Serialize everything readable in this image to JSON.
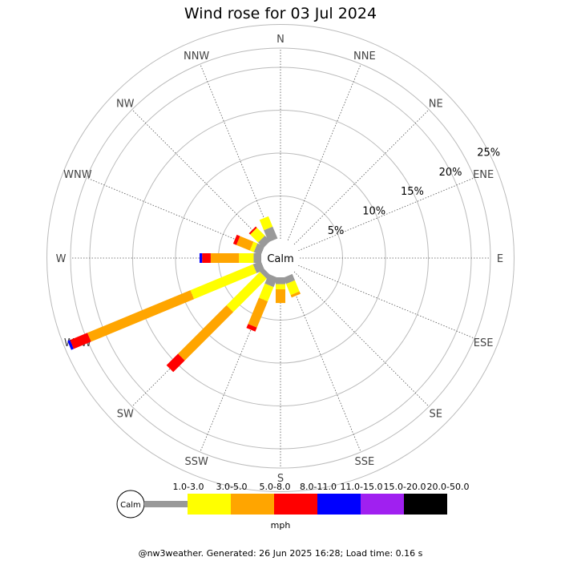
{
  "title": "Wind rose for 03 Jul 2024",
  "center_label": "Calm",
  "footer": "@nw3weather. Generated: 26 Jun 2025 16:28; Load time: 0.16 s",
  "legend": {
    "calm_label": "Calm",
    "unit": "mph",
    "bins": [
      {
        "label": "1.0-3.0",
        "color": "#999999"
      },
      {
        "label": "3.0-5.0",
        "color": "#ffff00"
      },
      {
        "label": "5.0-8.0",
        "color": "#ffa500"
      },
      {
        "label": "8.0-11.0",
        "color": "#ff0000"
      },
      {
        "label": "11.0-15.0",
        "color": "#0000ff"
      },
      {
        "label": "15.0-20.0",
        "color": "#a020f0"
      },
      {
        "label": "20.0-50.0",
        "color": "#000000"
      }
    ]
  },
  "chart_data": {
    "type": "wind-rose",
    "title": "Wind rose for 03 Jul 2024",
    "unit": "mph",
    "radial_ticks": [
      {
        "value": 5,
        "label": "5%"
      },
      {
        "value": 10,
        "label": "10%"
      },
      {
        "value": 15,
        "label": "15%"
      },
      {
        "value": 20,
        "label": "20%"
      },
      {
        "value": 25,
        "label": "25%"
      }
    ],
    "directions": [
      "N",
      "NNE",
      "NE",
      "ENE",
      "E",
      "ESE",
      "SE",
      "SSE",
      "S",
      "SSW",
      "SW",
      "WSW",
      "W",
      "WNW",
      "NW",
      "NNW"
    ],
    "speed_bins": [
      "1.0-3.0",
      "3.0-5.0",
      "5.0-8.0",
      "8.0-11.0",
      "11.0-15.0",
      "15.0-20.0",
      "20.0-50.0"
    ],
    "colors": [
      "#999999",
      "#ffff00",
      "#ffa500",
      "#ff0000",
      "#0000ff",
      "#a020f0",
      "#000000"
    ],
    "values": {
      "N": [
        0,
        0,
        0,
        0,
        0,
        0,
        0
      ],
      "NNE": [
        0,
        0,
        0,
        0,
        0,
        0,
        0
      ],
      "NE": [
        0,
        0,
        0,
        0,
        0,
        0,
        0
      ],
      "ENE": [
        0,
        0,
        0,
        0,
        0,
        0,
        0
      ],
      "E": [
        0,
        0,
        0,
        0,
        0,
        0,
        0
      ],
      "ESE": [
        0,
        0,
        0,
        0,
        0,
        0,
        0
      ],
      "SE": [
        0,
        0,
        0,
        0,
        0,
        0,
        0
      ],
      "SSE": [
        0.8,
        1.4,
        0.3,
        0,
        0,
        0,
        0
      ],
      "S": [
        0.8,
        0.6,
        1.6,
        0,
        0,
        0,
        0
      ],
      "SSW": [
        1.2,
        1.8,
        3.3,
        0.5,
        0,
        0,
        0
      ],
      "SW": [
        0.6,
        5.5,
        8.0,
        1.9,
        0,
        0,
        0
      ],
      "WSW": [
        1.0,
        7.9,
        13.0,
        2.2,
        0.3,
        0,
        0
      ],
      "W": [
        0.9,
        1.7,
        3.3,
        1.0,
        0.3,
        0,
        0
      ],
      "WNW": [
        0.9,
        0.5,
        1.7,
        0.4,
        0,
        0,
        0
      ],
      "NW": [
        0.9,
        1.3,
        0,
        0.2,
        0,
        0,
        0
      ],
      "NNW": [
        1.5,
        1.3,
        0,
        0,
        0,
        0,
        0
      ]
    }
  }
}
